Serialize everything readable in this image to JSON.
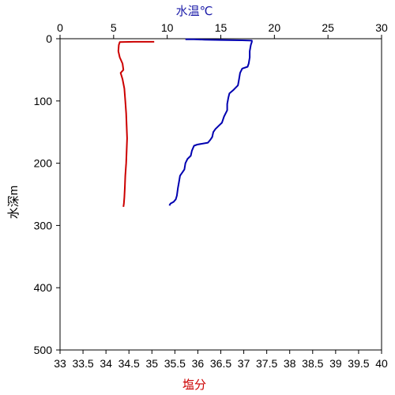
{
  "chart_data": {
    "type": "line",
    "top_axis": {
      "label": "水温℃",
      "label_color": "#1a1aa8",
      "range": [
        0,
        30
      ],
      "ticks": [
        0,
        5,
        10,
        15,
        20,
        25,
        30
      ],
      "tick_labels": [
        "0",
        "5",
        "10",
        "15",
        "20",
        "25",
        "30"
      ]
    },
    "bottom_axis": {
      "label": "塩分",
      "label_color": "#cc0000",
      "range": [
        33,
        40
      ],
      "ticks": [
        33,
        33.5,
        34,
        34.5,
        35,
        35.5,
        36,
        36.5,
        37,
        37.5,
        38,
        38.5,
        39,
        39.5,
        40
      ],
      "tick_labels": [
        "33",
        "33.5",
        "34",
        "34.5",
        "35",
        "35.5",
        "36",
        "36.5",
        "37",
        "37.5",
        "38",
        "38.5",
        "39",
        "39.5",
        "40"
      ]
    },
    "y_axis": {
      "label": "水深m",
      "range": [
        0,
        500
      ],
      "inverted": true,
      "ticks": [
        0,
        100,
        200,
        300,
        400,
        500
      ],
      "tick_labels": [
        "0",
        "100",
        "200",
        "300",
        "400",
        "500"
      ]
    },
    "grid": false,
    "series": [
      {
        "axis": "top",
        "color": "#0000b0",
        "points": [
          [
            11.7,
            1
          ],
          [
            12.5,
            1
          ],
          [
            13.5,
            1.5
          ],
          [
            15.0,
            2
          ],
          [
            17.0,
            2.5
          ],
          [
            17.9,
            3
          ],
          [
            17.9,
            5
          ],
          [
            17.8,
            10
          ],
          [
            17.7,
            20
          ],
          [
            17.7,
            30
          ],
          [
            17.6,
            40
          ],
          [
            17.5,
            45
          ],
          [
            17.0,
            48
          ],
          [
            16.8,
            55
          ],
          [
            16.7,
            65
          ],
          [
            16.6,
            75
          ],
          [
            16.2,
            82
          ],
          [
            15.8,
            88
          ],
          [
            15.7,
            95
          ],
          [
            15.6,
            105
          ],
          [
            15.6,
            115
          ],
          [
            15.3,
            125
          ],
          [
            15.1,
            135
          ],
          [
            14.8,
            140
          ],
          [
            14.5,
            145
          ],
          [
            14.3,
            150
          ],
          [
            14.2,
            158
          ],
          [
            14.0,
            163
          ],
          [
            13.8,
            167
          ],
          [
            12.8,
            170
          ],
          [
            12.5,
            172
          ],
          [
            12.3,
            180
          ],
          [
            12.2,
            188
          ],
          [
            11.9,
            193
          ],
          [
            11.7,
            200
          ],
          [
            11.6,
            210
          ],
          [
            11.4,
            215
          ],
          [
            11.2,
            220
          ],
          [
            11.1,
            230
          ],
          [
            11.0,
            240
          ],
          [
            10.9,
            252
          ],
          [
            10.8,
            258
          ],
          [
            10.6,
            262
          ],
          [
            10.3,
            265
          ],
          [
            10.2,
            268
          ]
        ]
      },
      {
        "axis": "bottom",
        "color": "#cc0000",
        "points": [
          [
            35.05,
            5
          ],
          [
            34.6,
            5
          ],
          [
            34.3,
            5.5
          ],
          [
            34.28,
            10
          ],
          [
            34.27,
            20
          ],
          [
            34.3,
            30
          ],
          [
            34.36,
            40
          ],
          [
            34.38,
            50
          ],
          [
            34.32,
            55
          ],
          [
            34.36,
            65
          ],
          [
            34.4,
            80
          ],
          [
            34.42,
            100
          ],
          [
            34.44,
            120
          ],
          [
            34.45,
            140
          ],
          [
            34.46,
            160
          ],
          [
            34.45,
            180
          ],
          [
            34.44,
            200
          ],
          [
            34.42,
            220
          ],
          [
            34.41,
            240
          ],
          [
            34.4,
            255
          ],
          [
            34.39,
            265
          ],
          [
            34.38,
            270
          ]
        ]
      }
    ]
  }
}
